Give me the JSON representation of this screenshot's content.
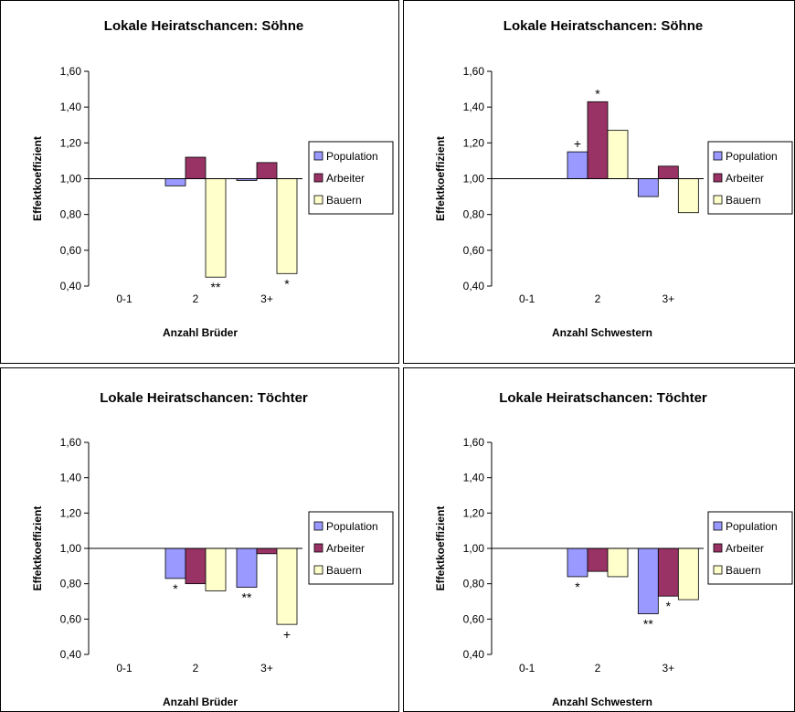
{
  "chart_data": [
    {
      "type": "bar",
      "title": "Lokale Heiratschancen: Söhne",
      "xlabel": "Anzahl Brüder",
      "ylabel": "Effektkoeffizient",
      "categories": [
        "0-1",
        "2",
        "3+"
      ],
      "baseline": 1.0,
      "ylim": [
        0.4,
        1.6
      ],
      "yticks": [
        "0,40",
        "0,60",
        "0,80",
        "1,00",
        "1,20",
        "1,40",
        "1,60"
      ],
      "legend_position": "right",
      "series": [
        {
          "name": "Population",
          "values": [
            null,
            0.96,
            0.99
          ]
        },
        {
          "name": "Arbeiter",
          "values": [
            null,
            1.12,
            1.09
          ]
        },
        {
          "name": "Bauern",
          "values": [
            null,
            0.45,
            0.47
          ]
        }
      ],
      "annotations": [
        {
          "category": 1,
          "series": 2,
          "text": "**"
        },
        {
          "category": 2,
          "series": 2,
          "text": "*"
        }
      ]
    },
    {
      "type": "bar",
      "title": "Lokale Heiratschancen: Söhne",
      "xlabel": "Anzahl Schwestern",
      "ylabel": "Effektkoeffizient",
      "categories": [
        "0-1",
        "2",
        "3+"
      ],
      "baseline": 1.0,
      "ylim": [
        0.4,
        1.6
      ],
      "yticks": [
        "0,40",
        "0,60",
        "0,80",
        "1,00",
        "1,20",
        "1,40",
        "1,60"
      ],
      "legend_position": "right",
      "series": [
        {
          "name": "Population",
          "values": [
            null,
            1.15,
            0.9
          ]
        },
        {
          "name": "Arbeiter",
          "values": [
            null,
            1.43,
            1.07
          ]
        },
        {
          "name": "Bauern",
          "values": [
            null,
            1.27,
            0.81
          ]
        }
      ],
      "annotations": [
        {
          "category": 1,
          "series": 0,
          "text": "+"
        },
        {
          "category": 1,
          "series": 1,
          "text": "*"
        }
      ]
    },
    {
      "type": "bar",
      "title": "Lokale Heiratschancen: Töchter",
      "xlabel": "Anzahl Brüder",
      "ylabel": "Effektkoeffizient",
      "categories": [
        "0-1",
        "2",
        "3+"
      ],
      "baseline": 1.0,
      "ylim": [
        0.4,
        1.6
      ],
      "yticks": [
        "0,40",
        "0,60",
        "0,80",
        "1,00",
        "1,20",
        "1,40",
        "1,60"
      ],
      "legend_position": "right",
      "series": [
        {
          "name": "Population",
          "values": [
            null,
            0.83,
            0.78
          ]
        },
        {
          "name": "Arbeiter",
          "values": [
            null,
            0.8,
            0.97
          ]
        },
        {
          "name": "Bauern",
          "values": [
            null,
            0.76,
            0.57
          ]
        }
      ],
      "annotations": [
        {
          "category": 1,
          "series": 0,
          "text": "*"
        },
        {
          "category": 2,
          "series": 0,
          "text": "**"
        },
        {
          "category": 2,
          "series": 2,
          "text": "+"
        }
      ]
    },
    {
      "type": "bar",
      "title": "Lokale Heiratschancen: Töchter",
      "xlabel": "Anzahl Schwestern",
      "ylabel": "Effektkoeffizient",
      "categories": [
        "0-1",
        "2",
        "3+"
      ],
      "baseline": 1.0,
      "ylim": [
        0.4,
        1.6
      ],
      "yticks": [
        "0,40",
        "0,60",
        "0,80",
        "1,00",
        "1,20",
        "1,40",
        "1,60"
      ],
      "legend_position": "right",
      "series": [
        {
          "name": "Population",
          "values": [
            null,
            0.84,
            0.63
          ]
        },
        {
          "name": "Arbeiter",
          "values": [
            null,
            0.87,
            0.73
          ]
        },
        {
          "name": "Bauern",
          "values": [
            null,
            0.84,
            0.71
          ]
        }
      ],
      "annotations": [
        {
          "category": 1,
          "series": 0,
          "text": "*"
        },
        {
          "category": 2,
          "series": 0,
          "text": "**"
        },
        {
          "category": 2,
          "series": 1,
          "text": "*"
        }
      ]
    }
  ],
  "colors": {
    "Population": "#9999ff",
    "Arbeiter": "#993366",
    "Bauern": "#ffffcc"
  }
}
